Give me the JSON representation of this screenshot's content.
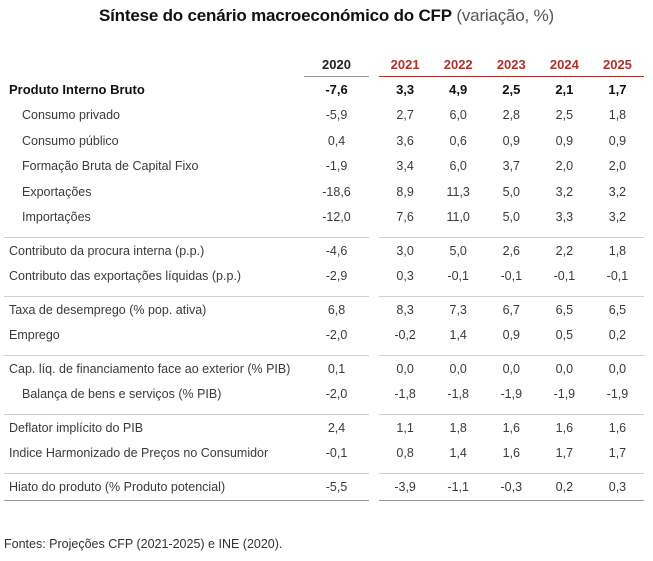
{
  "title": {
    "main": "Síntese do cenário macroeconómico do CFP",
    "sub": "(variação, %)"
  },
  "years": [
    "2020",
    "2021",
    "2022",
    "2023",
    "2024",
    "2025"
  ],
  "rows": {
    "pib": {
      "label": "Produto Interno Bruto",
      "values": [
        "-7,6",
        "3,3",
        "4,9",
        "2,5",
        "2,1",
        "1,7"
      ]
    },
    "consumo_privado": {
      "label": "Consumo privado",
      "values": [
        "-5,9",
        "2,7",
        "6,0",
        "2,8",
        "2,5",
        "1,8"
      ]
    },
    "consumo_publico": {
      "label": "Consumo público",
      "values": [
        "0,4",
        "3,6",
        "0,6",
        "0,9",
        "0,9",
        "0,9"
      ]
    },
    "fbcf": {
      "label": "Formação Bruta de Capital Fixo",
      "values": [
        "-1,9",
        "3,4",
        "6,0",
        "3,7",
        "2,0",
        "2,0"
      ]
    },
    "exportacoes": {
      "label": "Exportações",
      "values": [
        "-18,6",
        "8,9",
        "11,3",
        "5,0",
        "3,2",
        "3,2"
      ]
    },
    "importacoes": {
      "label": "Importações",
      "values": [
        "-12,0",
        "7,6",
        "11,0",
        "5,0",
        "3,3",
        "3,2"
      ]
    },
    "procura_interna": {
      "label": "Contributo da procura interna (p.p.)",
      "values": [
        "-4,6",
        "3,0",
        "5,0",
        "2,6",
        "2,2",
        "1,8"
      ]
    },
    "export_liquidas": {
      "label": "Contributo das exportações líquidas (p.p.)",
      "values": [
        "-2,9",
        "0,3",
        "-0,1",
        "-0,1",
        "-0,1",
        "-0,1"
      ]
    },
    "desemprego": {
      "label": "Taxa de desemprego (% pop. ativa)",
      "values": [
        "6,8",
        "8,3",
        "7,3",
        "6,7",
        "6,5",
        "6,5"
      ]
    },
    "emprego": {
      "label": "Emprego",
      "values": [
        "-2,0",
        "-0,2",
        "1,4",
        "0,9",
        "0,5",
        "0,2"
      ]
    },
    "cap_financiamento": {
      "label": "Cap. líq. de financiamento face ao exterior (% PIB)",
      "values": [
        "0,1",
        "0,0",
        "0,0",
        "0,0",
        "0,0",
        "0,0"
      ]
    },
    "balanca": {
      "label": "Balança de bens e serviços (% PIB)",
      "values": [
        "-2,0",
        "-1,8",
        "-1,8",
        "-1,9",
        "-1,9",
        "-1,9"
      ]
    },
    "deflator": {
      "label": "Deflator implícito do PIB",
      "values": [
        "2,4",
        "1,1",
        "1,8",
        "1,6",
        "1,6",
        "1,6"
      ]
    },
    "ihpc": {
      "label": "Indice Harmonizado de Preços no Consumidor",
      "values": [
        "-0,1",
        "0,8",
        "1,4",
        "1,6",
        "1,7",
        "1,7"
      ]
    },
    "hiato": {
      "label": "Hiato do produto (% Produto potencial)",
      "values": [
        "-5,5",
        "-3,9",
        "-1,1",
        "-0,3",
        "0,2",
        "0,3"
      ]
    }
  },
  "source": "Fontes: Projeções CFP (2021-2025) e INE (2020)."
}
